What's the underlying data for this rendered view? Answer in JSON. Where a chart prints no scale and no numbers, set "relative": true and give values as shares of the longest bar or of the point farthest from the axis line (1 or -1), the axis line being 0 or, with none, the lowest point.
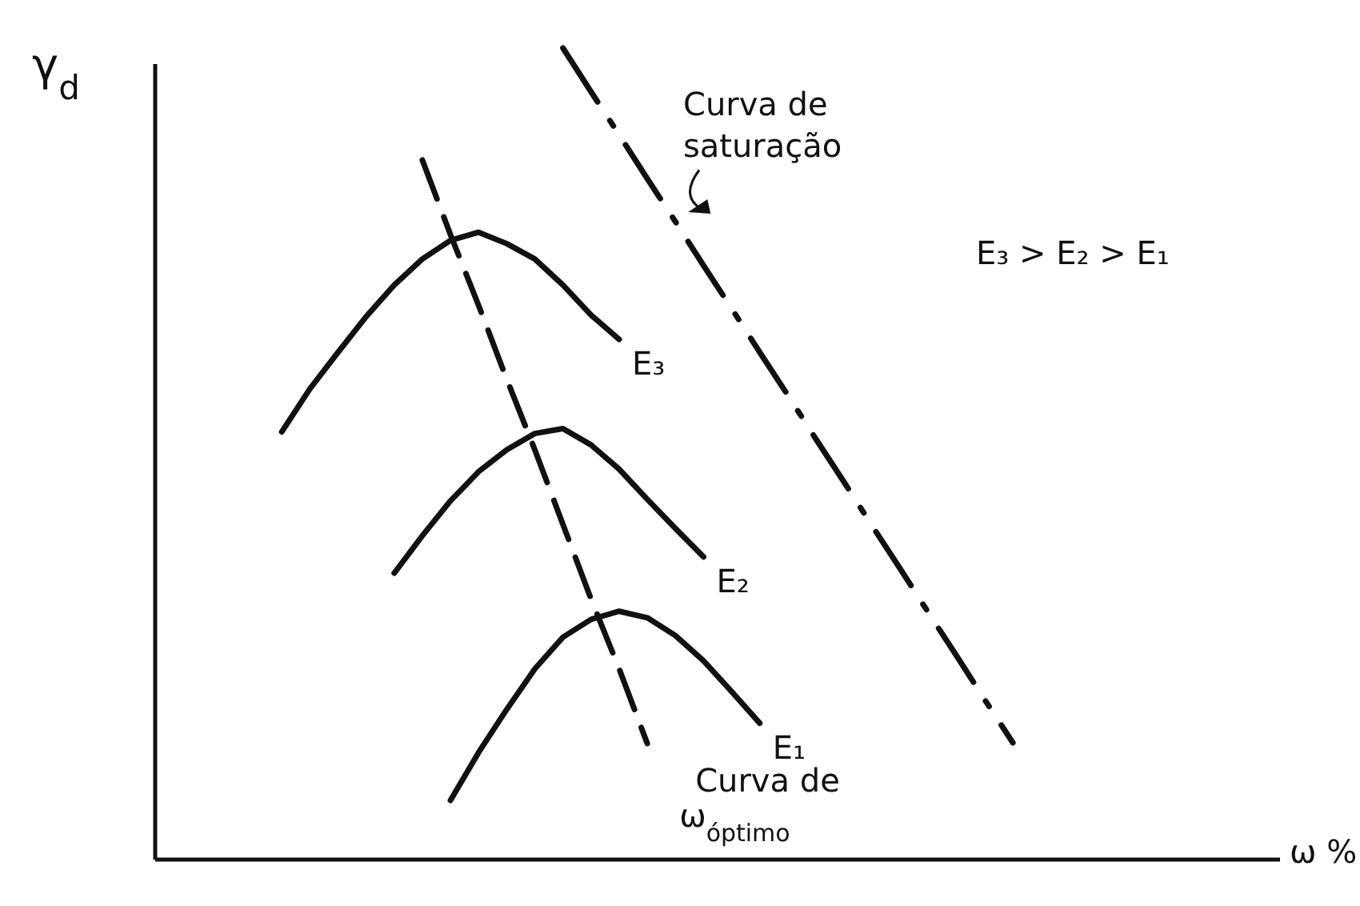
{
  "chart_data": {
    "type": "line",
    "relative": true,
    "xlabel": "ω %",
    "ylabel": "γ$_{d}$",
    "marker": "none",
    "annotations": [
      "E₃ > E₂ > E₁"
    ],
    "categories": [
      null,
      null,
      null,
      null,
      null,
      null,
      null,
      null,
      null,
      null,
      null,
      null,
      null,
      null,
      null,
      null,
      null,
      null,
      null,
      null,
      null,
      null,
      null,
      null,
      null,
      null,
      null,
      null,
      null,
      null,
      null,
      null,
      null,
      null,
      null,
      null,
      null,
      null,
      null,
      null
    ],
    "series": [
      {
        "name": "E₃",
        "color": "#111111",
        "line_style": "solid",
        "values": [
          null,
          null,
          null,
          null,
          0.527,
          0.58,
          0.625,
          0.669,
          0.708,
          0.74,
          0.763,
          0.773,
          0.759,
          0.74,
          0.708,
          0.671,
          0.641,
          null,
          null,
          null,
          null,
          null,
          null,
          null,
          null,
          null,
          null,
          null,
          null,
          null,
          null,
          null,
          null,
          null,
          null,
          null,
          null,
          null,
          null,
          null
        ]
      },
      {
        "name": "E₂",
        "color": "#111111",
        "line_style": "solid",
        "values": [
          null,
          null,
          null,
          null,
          null,
          null,
          null,
          null,
          0.353,
          0.399,
          0.442,
          0.478,
          0.505,
          0.525,
          0.531,
          0.511,
          0.481,
          0.444,
          0.408,
          0.373,
          null,
          null,
          null,
          null,
          null,
          null,
          null,
          null,
          null,
          null,
          null,
          null,
          null,
          null,
          null,
          null,
          null,
          null,
          null,
          null
        ]
      },
      {
        "name": "E₁",
        "color": "#111111",
        "line_style": "solid",
        "values": [
          null,
          null,
          null,
          null,
          null,
          null,
          null,
          null,
          null,
          null,
          0.073,
          0.132,
          0.185,
          0.235,
          0.274,
          0.296,
          0.306,
          0.298,
          0.276,
          0.245,
          0.207,
          0.168,
          null,
          null,
          null,
          null,
          null,
          null,
          null,
          null,
          null,
          null,
          null,
          null,
          null,
          null,
          null,
          null,
          null,
          null
        ]
      },
      {
        "name": "Curva de saturação",
        "color": "#111111",
        "line_style": "dashdot",
        "values": [
          null,
          null,
          null,
          null,
          null,
          null,
          null,
          null,
          null,
          null,
          null,
          null,
          null,
          null,
          1.0,
          0.946,
          0.893,
          0.839,
          0.786,
          0.732,
          0.679,
          0.625,
          0.572,
          0.518,
          0.465,
          0.411,
          0.358,
          0.304,
          0.251,
          0.197,
          0.144,
          null,
          null,
          null,
          null,
          null,
          null,
          null,
          null,
          null
        ]
      },
      {
        "name": "Curva de ω$_{óptimo}$",
        "color": "#111111",
        "line_style": "dashed",
        "values": [
          null,
          null,
          null,
          null,
          null,
          null,
          null,
          null,
          null,
          0.862,
          0.77,
          0.683,
          0.592,
          0.505,
          0.413,
          0.321,
          0.235,
          0.143,
          null,
          null,
          null,
          null,
          null,
          null,
          null,
          null,
          null,
          null,
          null,
          null,
          null,
          null,
          null,
          null,
          null,
          null,
          null,
          null,
          null,
          null
        ]
      }
    ]
  }
}
